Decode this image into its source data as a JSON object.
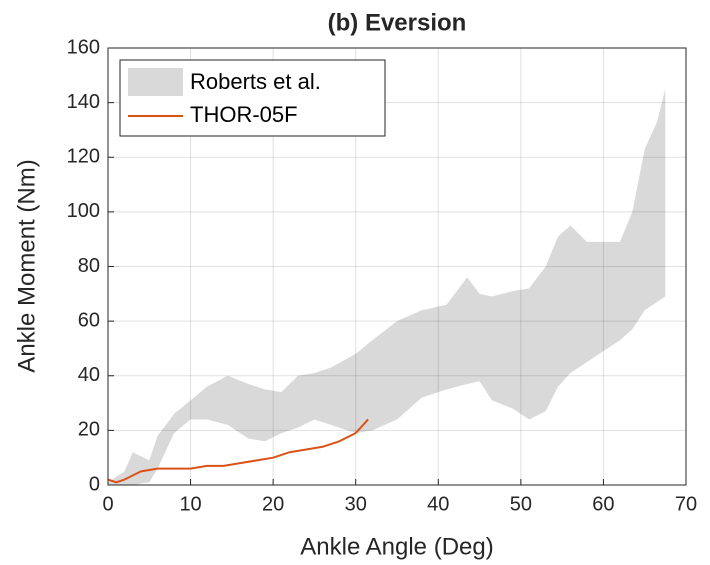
{
  "chart_data": {
    "type": "line",
    "title": "(b) Eversion",
    "xlabel": "Ankle Angle (Deg)",
    "ylabel": "Ankle Moment (Nm)",
    "xlim": [
      0,
      70
    ],
    "xticks": [
      0,
      10,
      20,
      30,
      40,
      50,
      60,
      70
    ],
    "ylim": [
      0,
      160
    ],
    "yticks": [
      0,
      20,
      40,
      60,
      80,
      100,
      120,
      140,
      160
    ],
    "grid": true,
    "legend": "upper left",
    "band": {
      "name": "Roberts et al.",
      "color": "#d9d9d9",
      "x": [
        0,
        2,
        3,
        5,
        6,
        8,
        10,
        12,
        14.5,
        17,
        19,
        21,
        23,
        25,
        27,
        30,
        32,
        35,
        38,
        41,
        43.5,
        45,
        46.5,
        49,
        51,
        53,
        54.5,
        56,
        58,
        60,
        62,
        63.5,
        65,
        66.5,
        67.5
      ],
      "upper": [
        1,
        5,
        12,
        9,
        18,
        26,
        31,
        36,
        40,
        37,
        35,
        34,
        40,
        41,
        43,
        48,
        53,
        60,
        64,
        66,
        76,
        70,
        69,
        71,
        72,
        80,
        91,
        95,
        89,
        89,
        89,
        100,
        123,
        133,
        145
      ],
      "lower": [
        0,
        0,
        0,
        1,
        6,
        19,
        24,
        24,
        22,
        17,
        16,
        19,
        21,
        24,
        22,
        19,
        20,
        24,
        32,
        35,
        37,
        38,
        31,
        28,
        24,
        27,
        36,
        41,
        45,
        49,
        53,
        57,
        64,
        67,
        69
      ]
    },
    "series": [
      {
        "name": "THOR-05F",
        "color": "#d95319",
        "x": [
          0,
          1,
          2,
          4,
          6,
          8,
          10,
          12,
          14,
          16,
          18,
          20,
          22,
          24,
          26,
          28,
          30,
          31.5
        ],
        "values": [
          2,
          1,
          2,
          5,
          6,
          6,
          6,
          7,
          7,
          8,
          9,
          10,
          12,
          13,
          14,
          16,
          19,
          24
        ]
      }
    ]
  }
}
